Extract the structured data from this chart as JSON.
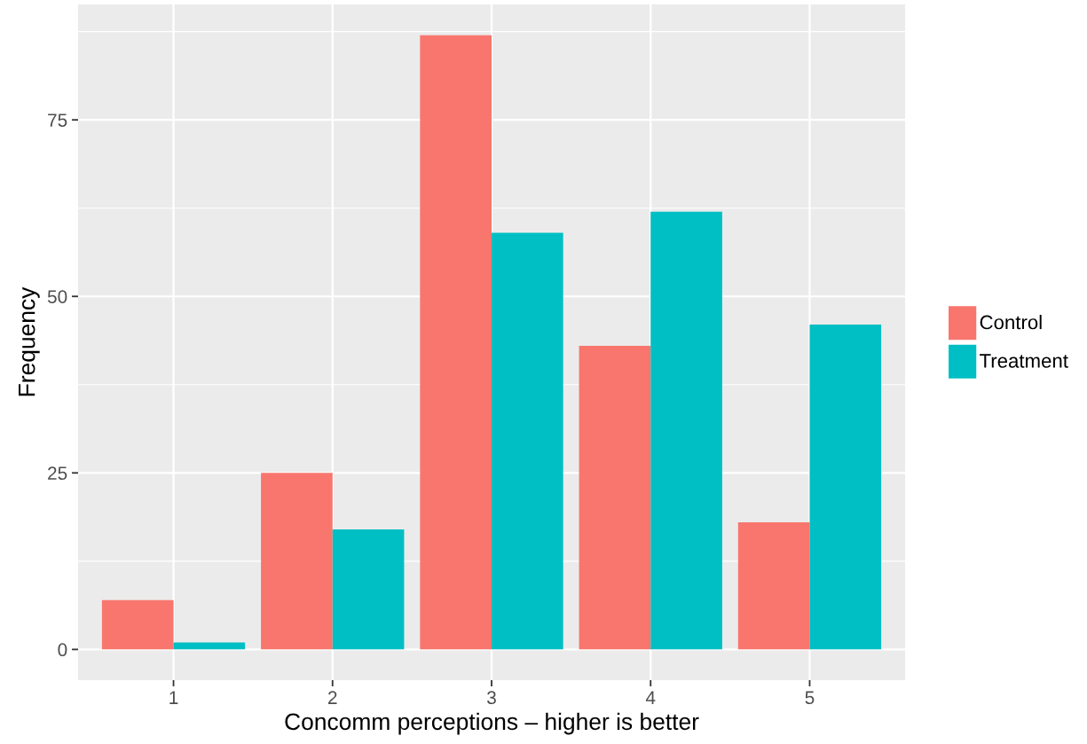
{
  "chart_data": {
    "type": "bar",
    "xlabel": "Concomm perceptions – higher is better",
    "ylabel": "Frequency",
    "categories": [
      "1",
      "2",
      "3",
      "4",
      "5"
    ],
    "series": [
      {
        "name": "Control",
        "color": "#f8766d",
        "values": [
          7,
          25,
          87,
          43,
          18
        ]
      },
      {
        "name": "Treatment",
        "color": "#00bfc4",
        "values": [
          1,
          17,
          59,
          62,
          46
        ]
      }
    ],
    "ylim": [
      -4.35,
      91.35
    ],
    "yticks": [
      0,
      25,
      50,
      75
    ],
    "grid": true,
    "legend": "right"
  }
}
